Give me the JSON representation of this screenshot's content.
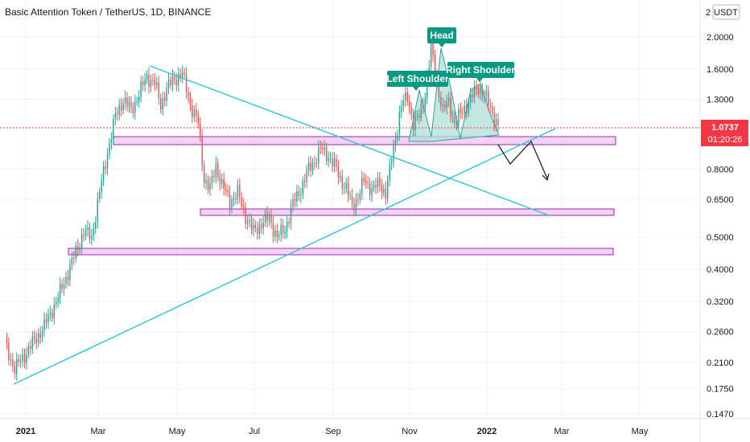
{
  "header": {
    "title": "Basic Attention Token / TetherUS, 1D, BINANCE",
    "currency_button": "USDT",
    "axis_top_fragment": "2"
  },
  "price_tag": {
    "price": "1.0737",
    "countdown": "01:20:26",
    "color": "#f23645"
  },
  "annotations": {
    "head": "Head",
    "left_shoulder": "Left Shoulder",
    "right_shoulder": "Right Shoulder",
    "label_color": "#089981"
  },
  "colors": {
    "up": "#26a69a",
    "down": "#ef5350",
    "trendline": "#26c6da",
    "zone_fill": "#f3d3f3",
    "zone_stroke": "#9c27b0",
    "pattern_fill": "#b2dfdb"
  },
  "chart_data": {
    "type": "candlestick",
    "scale": "log",
    "y_ticks": [
      "2.0000",
      "1.6000",
      "1.3000",
      "0.8000",
      "0.6500",
      "0.5000",
      "0.4000",
      "0.3200",
      "0.2600",
      "0.2100",
      "0.1750",
      "0.1470"
    ],
    "x_ticks": [
      {
        "label": "2021",
        "bold": true
      },
      {
        "label": "Mar",
        "bold": false
      },
      {
        "label": "May",
        "bold": false
      },
      {
        "label": "Jul",
        "bold": false
      },
      {
        "label": "Sep",
        "bold": false
      },
      {
        "label": "Nov",
        "bold": false
      },
      {
        "label": "2022",
        "bold": true
      },
      {
        "label": "Mar",
        "bold": false
      },
      {
        "label": "May",
        "bold": false
      }
    ],
    "current_price": 1.0737,
    "ohlc_anchors": [
      [
        0,
        0.24
      ],
      [
        5,
        0.2
      ],
      [
        12,
        0.23
      ],
      [
        20,
        0.27
      ],
      [
        27,
        0.33
      ],
      [
        34,
        0.42
      ],
      [
        40,
        0.52
      ],
      [
        44,
        0.5
      ],
      [
        48,
        0.68
      ],
      [
        52,
        0.9
      ],
      [
        56,
        1.15
      ],
      [
        60,
        1.3
      ],
      [
        64,
        1.2
      ],
      [
        68,
        1.35
      ],
      [
        72,
        1.52
      ],
      [
        76,
        1.45
      ],
      [
        79,
        1.25
      ],
      [
        82,
        1.4
      ],
      [
        86,
        1.5
      ],
      [
        90,
        1.55
      ],
      [
        94,
        1.25
      ],
      [
        98,
        1.1
      ],
      [
        101,
        0.75
      ],
      [
        104,
        0.7
      ],
      [
        107,
        0.82
      ],
      [
        110,
        0.72
      ],
      [
        114,
        0.64
      ],
      [
        118,
        0.68
      ],
      [
        122,
        0.58
      ],
      [
        126,
        0.52
      ],
      [
        130,
        0.55
      ],
      [
        134,
        0.57
      ],
      [
        138,
        0.5
      ],
      [
        142,
        0.53
      ],
      [
        146,
        0.63
      ],
      [
        150,
        0.7
      ],
      [
        154,
        0.8
      ],
      [
        157,
        0.85
      ],
      [
        160,
        0.92
      ],
      [
        164,
        0.88
      ],
      [
        167,
        0.82
      ],
      [
        170,
        0.75
      ],
      [
        173,
        0.7
      ],
      [
        176,
        0.62
      ],
      [
        179,
        0.66
      ],
      [
        182,
        0.74
      ],
      [
        186,
        0.7
      ],
      [
        190,
        0.72
      ],
      [
        193,
        0.68
      ],
      [
        196,
        0.85
      ],
      [
        198,
        1.0
      ],
      [
        201,
        1.25
      ],
      [
        204,
        1.32
      ],
      [
        207,
        1.1
      ],
      [
        210,
        1.15
      ],
      [
        213,
        1.35
      ],
      [
        216,
        1.85
      ],
      [
        219,
        1.45
      ],
      [
        222,
        1.2
      ],
      [
        225,
        1.28
      ],
      [
        228,
        1.1
      ],
      [
        232,
        1.2
      ],
      [
        236,
        1.3
      ],
      [
        240,
        1.42
      ],
      [
        244,
        1.3
      ],
      [
        248,
        1.15
      ],
      [
        250,
        1.0737
      ]
    ]
  }
}
